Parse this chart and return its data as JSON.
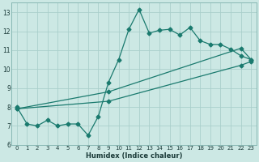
{
  "xlabel": "Humidex (Indice chaleur)",
  "bg_color": "#cce8e4",
  "line_color": "#1a7a6e",
  "grid_color": "#aacfcb",
  "xlim": [
    -0.5,
    23.5
  ],
  "ylim": [
    6.0,
    13.5
  ],
  "xticks": [
    0,
    1,
    2,
    3,
    4,
    5,
    6,
    7,
    8,
    9,
    10,
    11,
    12,
    13,
    14,
    15,
    16,
    17,
    18,
    19,
    20,
    21,
    22,
    23
  ],
  "yticks": [
    6,
    7,
    8,
    9,
    10,
    11,
    12,
    13
  ],
  "line1_x": [
    0,
    1,
    2,
    3,
    4,
    5,
    6,
    7,
    8,
    9,
    10,
    11,
    12,
    13,
    14,
    15,
    16,
    17,
    18,
    19,
    20,
    21,
    22,
    23
  ],
  "line1_y": [
    8.0,
    7.1,
    7.0,
    7.3,
    7.0,
    7.1,
    7.1,
    6.5,
    7.5,
    9.3,
    10.5,
    12.1,
    13.15,
    11.9,
    12.05,
    12.1,
    11.8,
    12.2,
    11.5,
    11.3,
    11.3,
    11.05,
    10.7,
    10.5
  ],
  "line2_x": [
    0,
    9,
    22,
    23
  ],
  "line2_y": [
    7.9,
    8.8,
    11.1,
    10.5
  ],
  "line3_x": [
    0,
    9,
    22,
    23
  ],
  "line3_y": [
    7.9,
    8.3,
    10.2,
    10.4
  ],
  "marker_size": 2.5
}
